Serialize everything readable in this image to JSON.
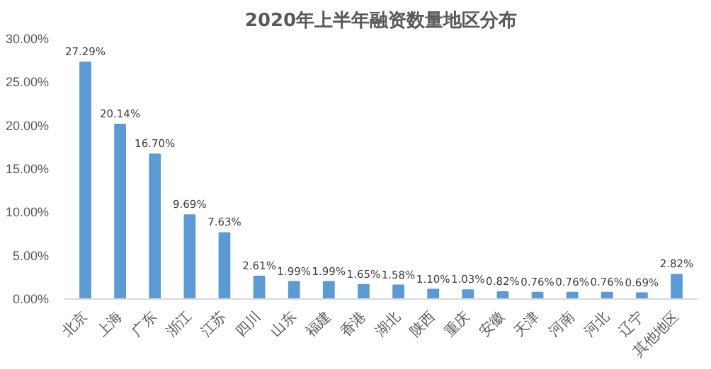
{
  "chart_data": {
    "type": "bar",
    "title": "2020年上半年融资数量地区分布",
    "categories": [
      "北京",
      "上海",
      "广东",
      "浙江",
      "江苏",
      "四川",
      "山东",
      "福建",
      "香港",
      "湖北",
      "陕西",
      "重庆",
      "安徽",
      "天津",
      "河南",
      "河北",
      "辽宁",
      "其他地区"
    ],
    "values": [
      27.29,
      20.14,
      16.7,
      9.69,
      7.63,
      2.61,
      1.99,
      1.99,
      1.65,
      1.58,
      1.1,
      1.03,
      0.82,
      0.76,
      0.76,
      0.76,
      0.69,
      2.82
    ],
    "value_labels": [
      "27.29%",
      "20.14%",
      "16.70%",
      "9.69%",
      "7.63%",
      "2.61%",
      "1.99%",
      "1.99%",
      "1.65%",
      "1.58%",
      "1.10%",
      "1.03%",
      "0.82%",
      "0.76%",
      "0.76%",
      "0.76%",
      "0.69%",
      "2.82%"
    ],
    "color": "#5b9bd5",
    "ylim": [
      0,
      30
    ],
    "yticks": [
      {
        "value": 0,
        "label": "0.00%"
      },
      {
        "value": 5,
        "label": "5.00%"
      },
      {
        "value": 10,
        "label": "10.00%"
      },
      {
        "value": 15,
        "label": "15.00%"
      },
      {
        "value": 20,
        "label": "20.00%"
      },
      {
        "value": 25,
        "label": "25.00%"
      },
      {
        "value": 30,
        "label": "30.00%"
      }
    ],
    "grid": false
  }
}
